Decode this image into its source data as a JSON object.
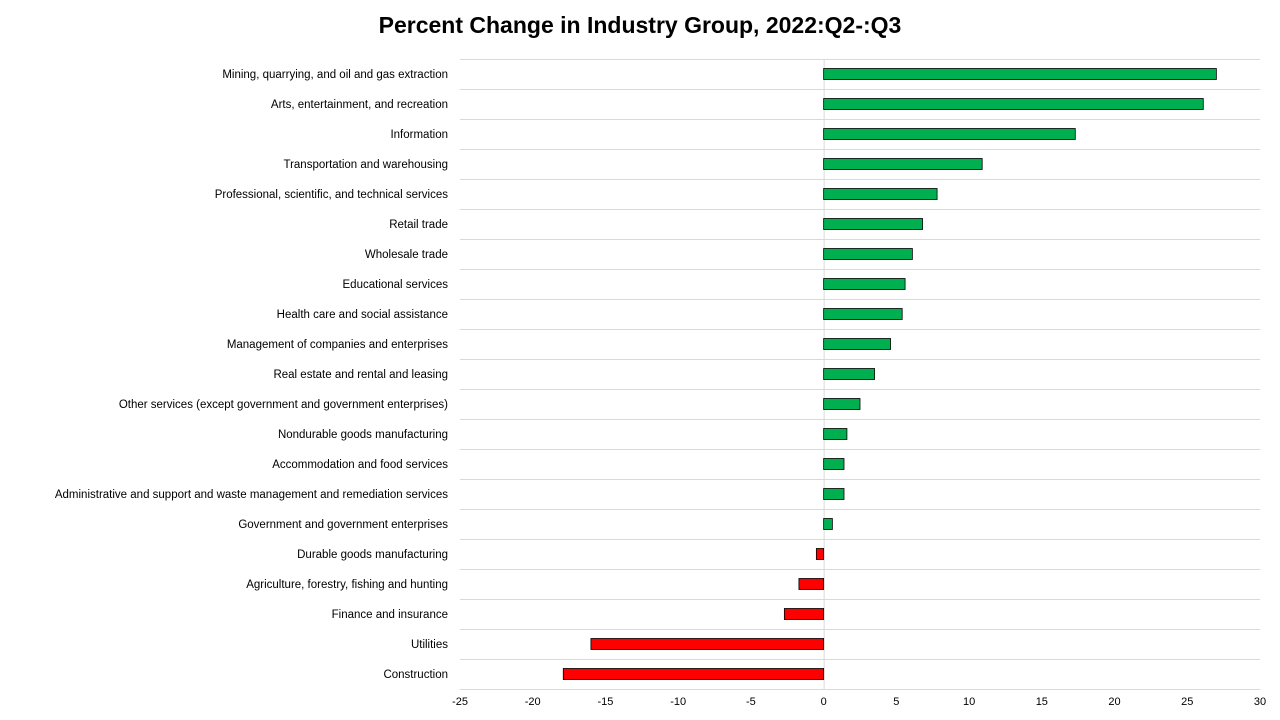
{
  "chart_data": {
    "type": "bar",
    "orientation": "horizontal",
    "title": "Percent Change in Industry Group, 2022:Q2-:Q3",
    "xlabel": "",
    "ylabel": "",
    "xlim": [
      -25,
      30
    ],
    "x_ticks": [
      -25,
      -20,
      -15,
      -10,
      -5,
      0,
      5,
      10,
      15,
      20,
      25,
      30
    ],
    "grid": "horizontal separators",
    "legend": "none",
    "colors": {
      "positive": "#00b050",
      "negative": "#ff0000",
      "bar_outline": "#000000",
      "grid": "#d9d9d9"
    },
    "categories": [
      "Mining, quarrying, and oil and gas extraction",
      "Arts, entertainment, and recreation",
      "Information",
      "Transportation and warehousing",
      "Professional, scientific, and technical services",
      "Retail trade",
      "Wholesale trade",
      "Educational services",
      "Health care and social assistance",
      "Management of companies and enterprises",
      "Real estate and rental and leasing",
      "Other services (except government and government enterprises)",
      "Nondurable goods manufacturing",
      "Accommodation and food services",
      "Administrative and support and waste management and remediation services",
      "Government and government enterprises",
      "Durable goods manufacturing",
      "Agriculture, forestry, fishing and hunting",
      "Finance and insurance",
      "Utilities",
      "Construction"
    ],
    "values": [
      27.0,
      26.1,
      17.3,
      10.9,
      7.8,
      6.8,
      6.1,
      5.6,
      5.4,
      4.6,
      3.5,
      2.5,
      1.6,
      1.4,
      1.4,
      0.6,
      -0.5,
      -1.7,
      -2.7,
      -16.0,
      -17.9
    ]
  }
}
